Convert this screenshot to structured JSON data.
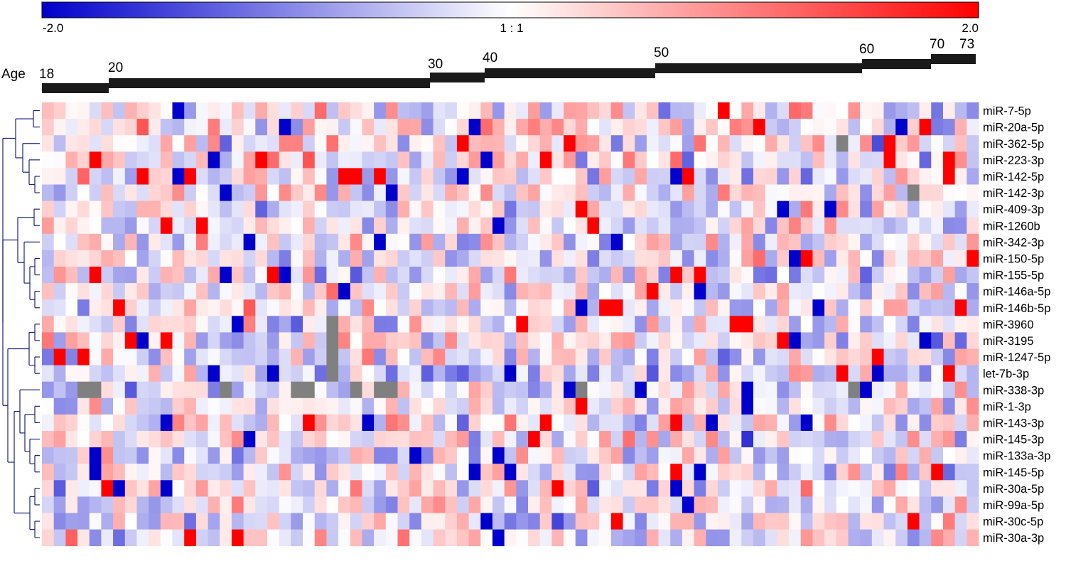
{
  "chart_data": {
    "type": "heatmap",
    "color_scale": {
      "min": -2.0,
      "max": 2.0,
      "min_label": "-2.0",
      "mid_label": "1 : 1",
      "max_label": "2.0",
      "low_color": "#0000cc",
      "mid_color": "#ffffff",
      "high_color": "#ff0000",
      "missing_color": "#808080"
    },
    "age_axis": {
      "label": "Age",
      "groups": [
        "18",
        "20",
        "30",
        "40",
        "50",
        "60",
        "70",
        "73"
      ],
      "bar_color": "#1a1a1a"
    },
    "column_count": 79,
    "dendrogram_color": "#1a237e",
    "rows": [
      "miR-7-5p",
      "miR-20a-5p",
      "miR-362-5p",
      "miR-223-3p",
      "miR-142-5p",
      "miR-142-3p",
      "miR-409-3p",
      "miR-1260b",
      "miR-342-3p",
      "miR-150-5p",
      "miR-155-5p",
      "miR-146a-5p",
      "miR-146b-5p",
      "miR-3960",
      "miR-3195",
      "miR-1247-5p",
      "let-7b-3p",
      "miR-338-3p",
      "miR-1-3p",
      "miR-143-3p",
      "miR-145-3p",
      "miR-133a-3p",
      "miR-145-5p",
      "miR-30a-5p",
      "miR-99a-5p",
      "miR-30c-5p",
      "miR-30a-3p"
    ],
    "row_bias": [
      0,
      0.1,
      0.1,
      0.1,
      -0.1,
      0,
      -0.2,
      0,
      -0.1,
      0,
      -0.1,
      0,
      0,
      0,
      0,
      -0.1,
      -0.2,
      -0.1,
      -0.1,
      0.1,
      0,
      -0.1,
      0,
      0,
      0,
      -0.1,
      0
    ]
  }
}
